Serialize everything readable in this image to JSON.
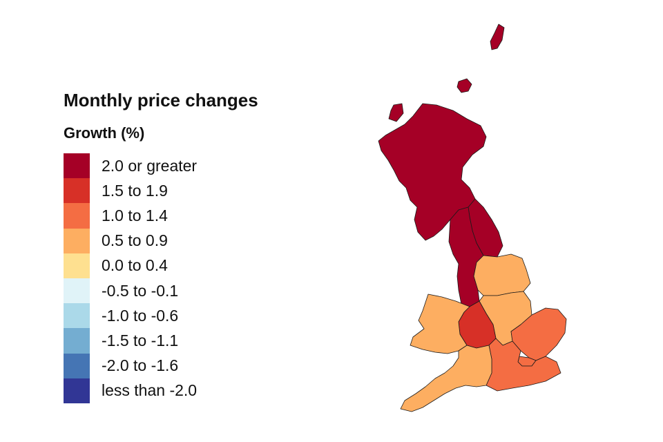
{
  "legend": {
    "title": "Monthly price changes",
    "subtitle": "Growth (%)",
    "items": [
      {
        "label": "2.0 or greater",
        "color": "#a50026"
      },
      {
        "label": "1.5 to 1.9",
        "color": "#d73027"
      },
      {
        "label": "1.0 to 1.4",
        "color": "#f46d43"
      },
      {
        "label": "0.5 to 0.9",
        "color": "#fdae61"
      },
      {
        "label": "0.0 to 0.4",
        "color": "#fee090"
      },
      {
        "label": "-0.5 to -0.1",
        "color": "#e0f3f8"
      },
      {
        "label": "-1.0 to -0.6",
        "color": "#abd9e9"
      },
      {
        "label": "-1.5 to -1.1",
        "color": "#74add1"
      },
      {
        "label": "-2.0 to -1.6",
        "color": "#4575b4"
      },
      {
        "label": "less than -2.0",
        "color": "#313695"
      }
    ]
  },
  "regions": [
    {
      "region": "scotland",
      "band": "2.0 or greater",
      "color": "#a50026"
    },
    {
      "region": "north-east",
      "band": "2.0 or greater",
      "color": "#a50026"
    },
    {
      "region": "north-west",
      "band": "2.0 or greater",
      "color": "#a50026"
    },
    {
      "region": "yorkshire-and-the-humber",
      "band": "0.5 to 0.9",
      "color": "#fdae61"
    },
    {
      "region": "east-midlands",
      "band": "0.5 to 0.9",
      "color": "#fdae61"
    },
    {
      "region": "west-midlands",
      "band": "1.5 to 1.9",
      "color": "#d73027"
    },
    {
      "region": "wales",
      "band": "0.5 to 0.9",
      "color": "#fdae61"
    },
    {
      "region": "east-of-england",
      "band": "1.0 to 1.4",
      "color": "#f46d43"
    },
    {
      "region": "london",
      "band": "1.0 to 1.4",
      "color": "#f46d43"
    },
    {
      "region": "south-east",
      "band": "1.0 to 1.4",
      "color": "#f46d43"
    },
    {
      "region": "south-west",
      "band": "0.5 to 0.9",
      "color": "#fdae61"
    }
  ]
}
